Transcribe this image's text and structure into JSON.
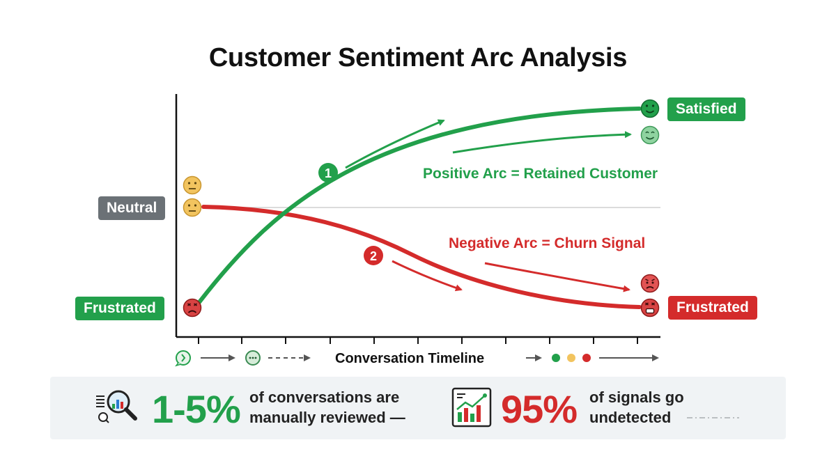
{
  "title": "Customer Sentiment Arc Analysis",
  "levels": {
    "satisfied": "Satisfied",
    "neutral": "Neutral",
    "frustrated_start": "Frustrated",
    "frustrated_end": "Frustrated"
  },
  "arcs": {
    "positive": {
      "number": "1",
      "label": "Positive Arc =  Retained Customer",
      "color": "#22a04b"
    },
    "negative": {
      "number": "2",
      "label": "Negative Arc = Churn Signal",
      "color": "#d42b2b"
    }
  },
  "timeline": {
    "label": "Conversation Timeline"
  },
  "stats": {
    "reviewed": {
      "value": "1-5%",
      "text_line1": "of conversations are",
      "text_line2": "manually reviewed —",
      "color": "#22a04b"
    },
    "undetected": {
      "value": "95%",
      "text_line1": "of signals go",
      "text_line2": "undetected",
      "color": "#d42b2b"
    }
  },
  "colors": {
    "green": "#22a04b",
    "red": "#d42b2b",
    "gray": "#6b7176",
    "face_neutral": "#f2c45f"
  },
  "icons": [
    "neutral-face-icon",
    "satisfied-face-icon",
    "smiling-face-icon",
    "frustrated-face-icon",
    "worried-face-icon",
    "chat-bubble-icon",
    "magnifier-chart-icon",
    "analytics-chart-icon"
  ]
}
